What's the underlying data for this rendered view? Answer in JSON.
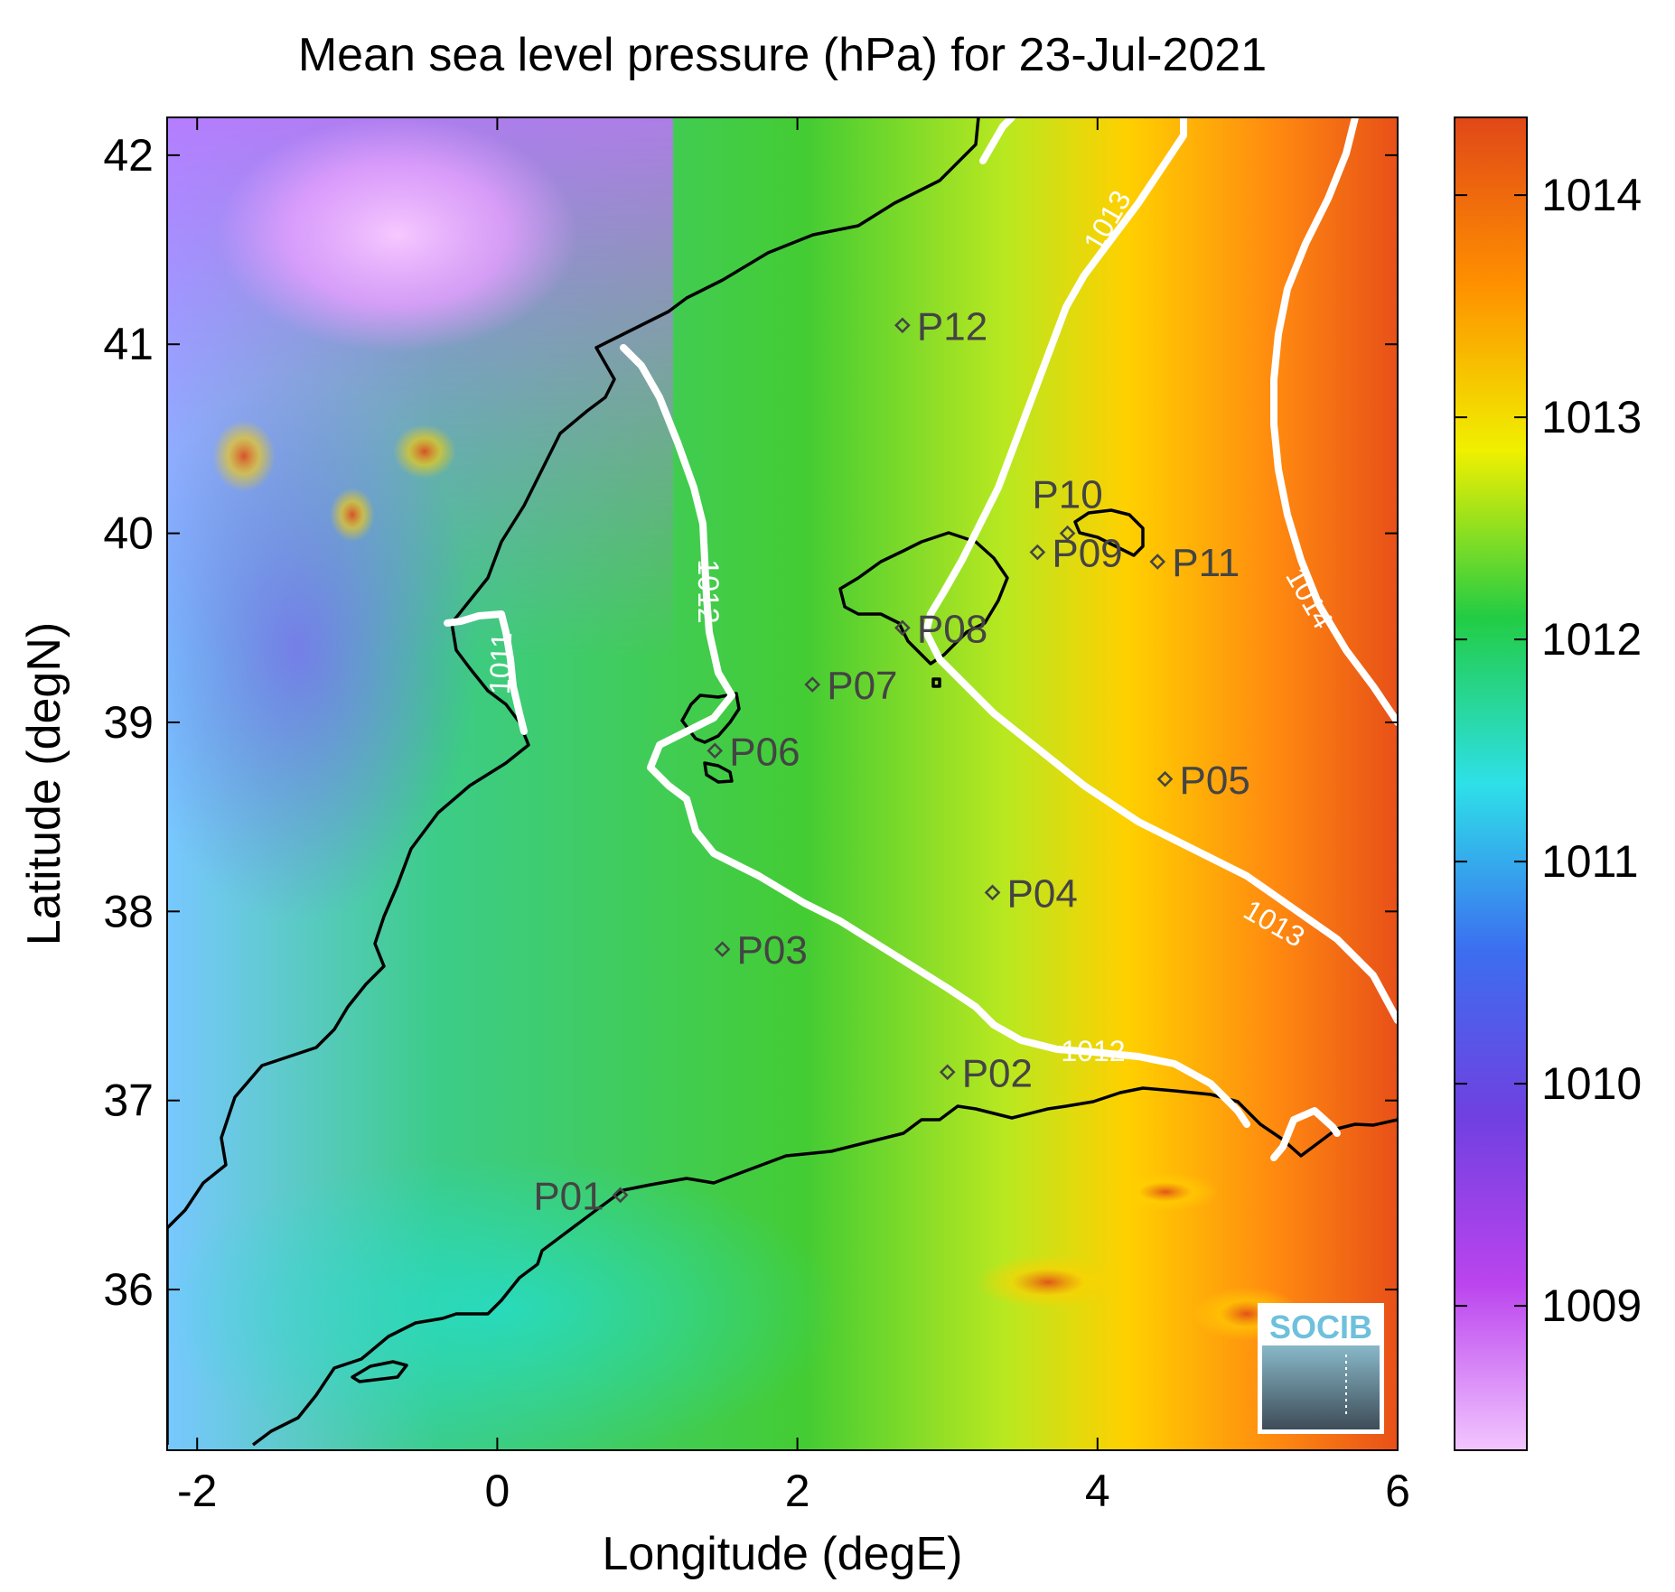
{
  "title": "Mean sea level pressure (hPa) for 23-Jul-2021",
  "xlabel": "Longitude (degE)",
  "ylabel": "Latitude (degN)",
  "x_ticks": [
    "-2",
    "0",
    "2",
    "4",
    "6"
  ],
  "y_ticks": [
    "42",
    "41",
    "40",
    "39",
    "38",
    "37",
    "36"
  ],
  "colorbar": {
    "ticks": [
      "1014",
      "1013",
      "1012",
      "1011",
      "1010",
      "1009"
    ],
    "range": [
      1008.35,
      1014.35
    ],
    "colors": [
      "#f2c6ff",
      "#bb44ee",
      "#7040e0",
      "#3c6ef0",
      "#2ee0e8",
      "#22cc44",
      "#f0f000",
      "#ff9000",
      "#e04818"
    ]
  },
  "contour_labels": {
    "c1011": "1011",
    "c1012a": "1012",
    "c1012b": "1012",
    "c1013a": "1013",
    "c1013b": "1013",
    "c1014": "1014"
  },
  "stations": [
    {
      "id": "P01",
      "lon": 0.82,
      "lat": 36.5
    },
    {
      "id": "P02",
      "lon": 3.0,
      "lat": 37.15
    },
    {
      "id": "P03",
      "lon": 1.5,
      "lat": 37.8
    },
    {
      "id": "P04",
      "lon": 3.3,
      "lat": 38.1
    },
    {
      "id": "P05",
      "lon": 4.45,
      "lat": 38.7
    },
    {
      "id": "P06",
      "lon": 1.45,
      "lat": 38.85
    },
    {
      "id": "P07",
      "lon": 2.1,
      "lat": 39.2
    },
    {
      "id": "P08",
      "lon": 2.7,
      "lat": 39.5
    },
    {
      "id": "P09",
      "lon": 3.6,
      "lat": 39.9
    },
    {
      "id": "P10",
      "lon": 3.8,
      "lat": 40.0
    },
    {
      "id": "P11",
      "lon": 4.4,
      "lat": 39.85
    },
    {
      "id": "P12",
      "lon": 2.7,
      "lat": 41.1
    }
  ],
  "logo_text": "SOCIB"
}
